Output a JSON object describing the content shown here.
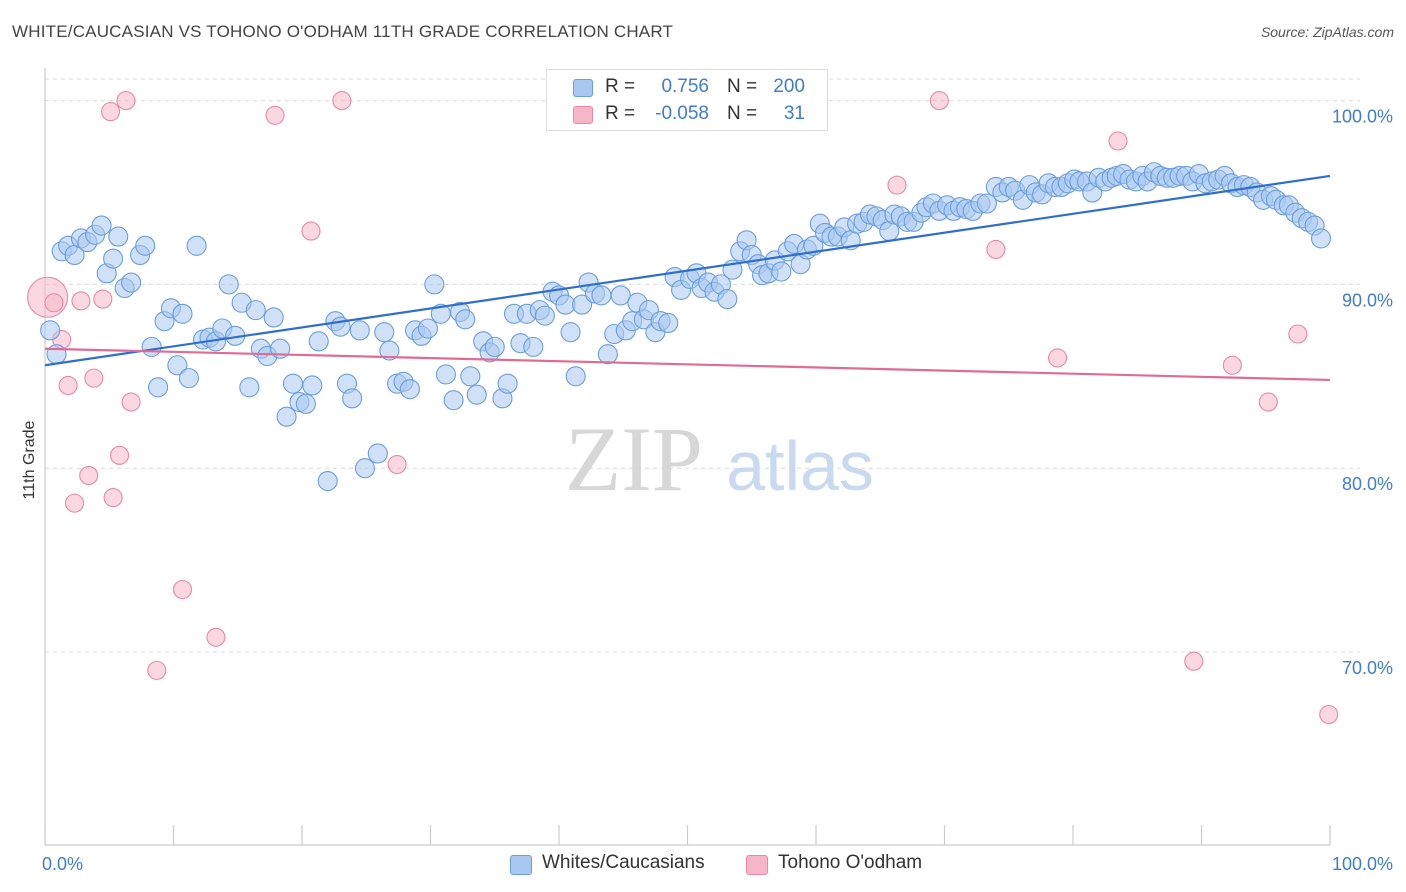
{
  "header": {
    "title": "WHITE/CAUCASIAN VS TOHONO O'ODHAM 11TH GRADE CORRELATION CHART",
    "source": "Source: ZipAtlas.com"
  },
  "legend": {
    "rows": [
      {
        "r_label": "R =",
        "r_value": "0.756",
        "n_label": "N =",
        "n_value": "200"
      },
      {
        "r_label": "R =",
        "r_value": "-0.058",
        "n_label": "N =",
        "n_value": "31"
      }
    ]
  },
  "watermark": {
    "zip": "ZIP",
    "atlas": "atlas"
  },
  "colors": {
    "blue_fill": "#a9c8f0",
    "blue_stroke": "#6a9fdc",
    "blue_line": "#2f6fcc",
    "pink_fill": "#f6b6c8",
    "pink_stroke": "#e889a5",
    "pink_line": "#e06c93",
    "tick_text": "#3f7dd1",
    "grid": "#d8d8d8"
  },
  "chart_data": {
    "type": "scatter",
    "title": "WHITE/CAUCASIAN VS TOHONO O'ODHAM 11TH GRADE CORRELATION CHART",
    "xlabel": "",
    "ylabel": "11th Grade",
    "xlim": [
      0,
      100
    ],
    "ylim": [
      59.5,
      101.5
    ],
    "x_ticks": [
      0,
      10,
      20,
      30,
      40,
      50,
      60,
      70,
      80,
      90,
      100
    ],
    "x_tick_labels": {
      "0": "0.0%",
      "100": "100.0%"
    },
    "y_ticks": [
      70,
      80,
      90,
      100
    ],
    "y_tick_labels": [
      "70.0%",
      "80.0%",
      "90.0%",
      "100.0%"
    ],
    "grid": "horizontal dashed",
    "legend_position": "top-center",
    "series": [
      {
        "name": "Whites/Caucasians",
        "color": "#a9c8f0",
        "trend": {
          "x": [
            0,
            100
          ],
          "y": [
            85.6,
            95.9
          ]
        },
        "points": [
          [
            0.4,
            87.5
          ],
          [
            0.9,
            86.2
          ],
          [
            1.3,
            91.8
          ],
          [
            1.8,
            92.1
          ],
          [
            2.3,
            91.6
          ],
          [
            2.8,
            92.5
          ],
          [
            3.3,
            92.3
          ],
          [
            3.9,
            92.7
          ],
          [
            4.4,
            93.2
          ],
          [
            4.8,
            90.6
          ],
          [
            5.3,
            91.4
          ],
          [
            5.7,
            92.6
          ],
          [
            6.2,
            89.8
          ],
          [
            6.7,
            90.1
          ],
          [
            7.4,
            91.6
          ],
          [
            7.8,
            92.1
          ],
          [
            8.3,
            86.6
          ],
          [
            8.8,
            84.4
          ],
          [
            9.3,
            88.0
          ],
          [
            9.8,
            88.7
          ],
          [
            10.3,
            85.6
          ],
          [
            10.7,
            88.4
          ],
          [
            11.2,
            84.9
          ],
          [
            11.8,
            92.1
          ],
          [
            12.3,
            87.0
          ],
          [
            12.8,
            87.1
          ],
          [
            13.3,
            86.9
          ],
          [
            13.8,
            87.6
          ],
          [
            14.3,
            90.0
          ],
          [
            14.8,
            87.2
          ],
          [
            15.3,
            89.0
          ],
          [
            15.9,
            84.4
          ],
          [
            16.4,
            88.6
          ],
          [
            16.8,
            86.5
          ],
          [
            17.3,
            86.1
          ],
          [
            17.8,
            88.2
          ],
          [
            18.3,
            86.5
          ],
          [
            18.8,
            82.8
          ],
          [
            19.3,
            84.6
          ],
          [
            19.8,
            83.6
          ],
          [
            20.3,
            83.5
          ],
          [
            20.8,
            84.5
          ],
          [
            21.3,
            86.9
          ],
          [
            22.0,
            79.3
          ],
          [
            22.6,
            88.0
          ],
          [
            23.0,
            87.7
          ],
          [
            23.5,
            84.6
          ],
          [
            23.9,
            83.8
          ],
          [
            24.5,
            87.5
          ],
          [
            24.9,
            80.0
          ],
          [
            25.9,
            80.8
          ],
          [
            26.4,
            87.4
          ],
          [
            26.8,
            86.4
          ],
          [
            27.4,
            84.6
          ],
          [
            27.9,
            84.7
          ],
          [
            28.4,
            84.3
          ],
          [
            28.8,
            87.5
          ],
          [
            29.3,
            87.2
          ],
          [
            29.8,
            87.6
          ],
          [
            30.3,
            90.0
          ],
          [
            30.8,
            88.4
          ],
          [
            31.2,
            85.1
          ],
          [
            31.8,
            83.7
          ],
          [
            32.3,
            88.5
          ],
          [
            32.7,
            88.1
          ],
          [
            33.1,
            85.0
          ],
          [
            33.6,
            84.0
          ],
          [
            34.1,
            86.9
          ],
          [
            34.6,
            86.3
          ],
          [
            35.0,
            86.6
          ],
          [
            35.6,
            83.8
          ],
          [
            36.0,
            84.6
          ],
          [
            36.5,
            88.4
          ],
          [
            37.0,
            86.8
          ],
          [
            37.5,
            88.4
          ],
          [
            38.0,
            86.6
          ],
          [
            38.5,
            88.6
          ],
          [
            38.9,
            88.3
          ],
          [
            39.5,
            89.6
          ],
          [
            40.0,
            89.4
          ],
          [
            40.5,
            88.9
          ],
          [
            40.9,
            87.4
          ],
          [
            41.3,
            85.0
          ],
          [
            41.8,
            88.9
          ],
          [
            42.3,
            90.1
          ],
          [
            42.8,
            89.5
          ],
          [
            43.3,
            89.4
          ],
          [
            43.8,
            86.2
          ],
          [
            44.3,
            87.3
          ],
          [
            44.8,
            89.4
          ],
          [
            45.2,
            87.5
          ],
          [
            45.7,
            88.0
          ],
          [
            46.1,
            89.0
          ],
          [
            46.6,
            88.1
          ],
          [
            47.0,
            88.6
          ],
          [
            47.5,
            87.4
          ],
          [
            47.9,
            88.0
          ],
          [
            48.5,
            87.9
          ],
          [
            49.0,
            90.4
          ],
          [
            49.5,
            89.7
          ],
          [
            50.2,
            90.3
          ],
          [
            50.7,
            90.6
          ],
          [
            51.1,
            89.8
          ],
          [
            51.6,
            90.1
          ],
          [
            52.1,
            89.6
          ],
          [
            52.6,
            90.0
          ],
          [
            53.1,
            89.2
          ],
          [
            53.5,
            90.8
          ],
          [
            54.1,
            91.8
          ],
          [
            54.6,
            92.4
          ],
          [
            55.0,
            91.6
          ],
          [
            55.5,
            91.1
          ],
          [
            55.8,
            90.5
          ],
          [
            56.3,
            90.6
          ],
          [
            56.8,
            91.3
          ],
          [
            57.3,
            90.7
          ],
          [
            57.8,
            91.8
          ],
          [
            58.3,
            92.2
          ],
          [
            58.8,
            91.1
          ],
          [
            59.3,
            91.9
          ],
          [
            59.8,
            92.1
          ],
          [
            60.3,
            93.3
          ],
          [
            60.7,
            92.8
          ],
          [
            61.2,
            92.6
          ],
          [
            61.7,
            92.6
          ],
          [
            62.2,
            93.1
          ],
          [
            62.7,
            92.4
          ],
          [
            63.2,
            93.3
          ],
          [
            63.7,
            93.4
          ],
          [
            64.2,
            93.8
          ],
          [
            64.7,
            93.7
          ],
          [
            65.2,
            93.5
          ],
          [
            65.7,
            92.9
          ],
          [
            66.1,
            93.8
          ],
          [
            66.6,
            93.7
          ],
          [
            67.1,
            93.4
          ],
          [
            67.6,
            93.4
          ],
          [
            68.2,
            93.9
          ],
          [
            68.6,
            94.2
          ],
          [
            69.1,
            94.4
          ],
          [
            69.6,
            94.0
          ],
          [
            70.2,
            94.3
          ],
          [
            70.7,
            94.0
          ],
          [
            71.2,
            94.2
          ],
          [
            71.7,
            94.1
          ],
          [
            72.2,
            94.0
          ],
          [
            72.8,
            94.4
          ],
          [
            73.3,
            94.4
          ],
          [
            74.0,
            95.3
          ],
          [
            74.5,
            95.0
          ],
          [
            75.0,
            95.3
          ],
          [
            75.5,
            95.1
          ],
          [
            76.1,
            94.6
          ],
          [
            76.6,
            95.4
          ],
          [
            77.1,
            95.0
          ],
          [
            77.6,
            94.9
          ],
          [
            78.1,
            95.5
          ],
          [
            78.6,
            95.3
          ],
          [
            79.1,
            95.3
          ],
          [
            79.6,
            95.5
          ],
          [
            80.1,
            95.7
          ],
          [
            80.5,
            95.6
          ],
          [
            81.1,
            95.6
          ],
          [
            81.5,
            95.0
          ],
          [
            82.0,
            95.8
          ],
          [
            82.5,
            95.6
          ],
          [
            83.0,
            95.8
          ],
          [
            83.4,
            95.9
          ],
          [
            83.9,
            96.0
          ],
          [
            84.4,
            95.7
          ],
          [
            84.9,
            95.6
          ],
          [
            85.4,
            95.9
          ],
          [
            85.8,
            95.6
          ],
          [
            86.3,
            96.1
          ],
          [
            86.8,
            95.9
          ],
          [
            87.3,
            95.8
          ],
          [
            87.8,
            95.8
          ],
          [
            88.3,
            95.9
          ],
          [
            88.8,
            95.9
          ],
          [
            89.3,
            95.6
          ],
          [
            89.8,
            96.0
          ],
          [
            90.3,
            95.5
          ],
          [
            90.8,
            95.6
          ],
          [
            91.3,
            95.7
          ],
          [
            91.8,
            95.9
          ],
          [
            92.3,
            95.5
          ],
          [
            92.8,
            95.3
          ],
          [
            93.3,
            95.4
          ],
          [
            93.8,
            95.3
          ],
          [
            94.3,
            95.0
          ],
          [
            94.8,
            94.6
          ],
          [
            95.4,
            94.8
          ],
          [
            95.8,
            94.6
          ],
          [
            96.4,
            94.3
          ],
          [
            96.8,
            94.3
          ],
          [
            97.3,
            93.9
          ],
          [
            97.8,
            93.6
          ],
          [
            98.3,
            93.4
          ],
          [
            98.8,
            93.2
          ],
          [
            99.3,
            92.5
          ]
        ]
      },
      {
        "name": "Tohono O'odham",
        "color": "#f6b6c8",
        "trend": {
          "x": [
            0,
            100
          ],
          "y": [
            86.5,
            84.8
          ]
        },
        "points": [
          [
            0.2,
            89.3
          ],
          [
            0.7,
            89.0
          ],
          [
            1.3,
            87.0
          ],
          [
            1.8,
            84.5
          ],
          [
            2.3,
            78.1
          ],
          [
            2.8,
            89.1
          ],
          [
            3.4,
            79.6
          ],
          [
            3.8,
            84.9
          ],
          [
            4.5,
            89.2
          ],
          [
            5.1,
            99.4
          ],
          [
            5.3,
            78.4
          ],
          [
            5.8,
            80.7
          ],
          [
            6.3,
            100.0
          ],
          [
            6.7,
            83.6
          ],
          [
            8.7,
            69.0
          ],
          [
            10.7,
            73.4
          ],
          [
            13.3,
            70.8
          ],
          [
            17.9,
            99.2
          ],
          [
            20.7,
            92.9
          ],
          [
            23.1,
            100.0
          ],
          [
            27.4,
            80.2
          ],
          [
            66.3,
            95.4
          ],
          [
            69.6,
            100.0
          ],
          [
            74.0,
            91.9
          ],
          [
            78.8,
            86.0
          ],
          [
            83.5,
            97.8
          ],
          [
            89.4,
            69.5
          ],
          [
            92.4,
            85.6
          ],
          [
            95.2,
            83.6
          ],
          [
            97.5,
            87.3
          ],
          [
            99.9,
            66.6
          ]
        ]
      }
    ]
  }
}
